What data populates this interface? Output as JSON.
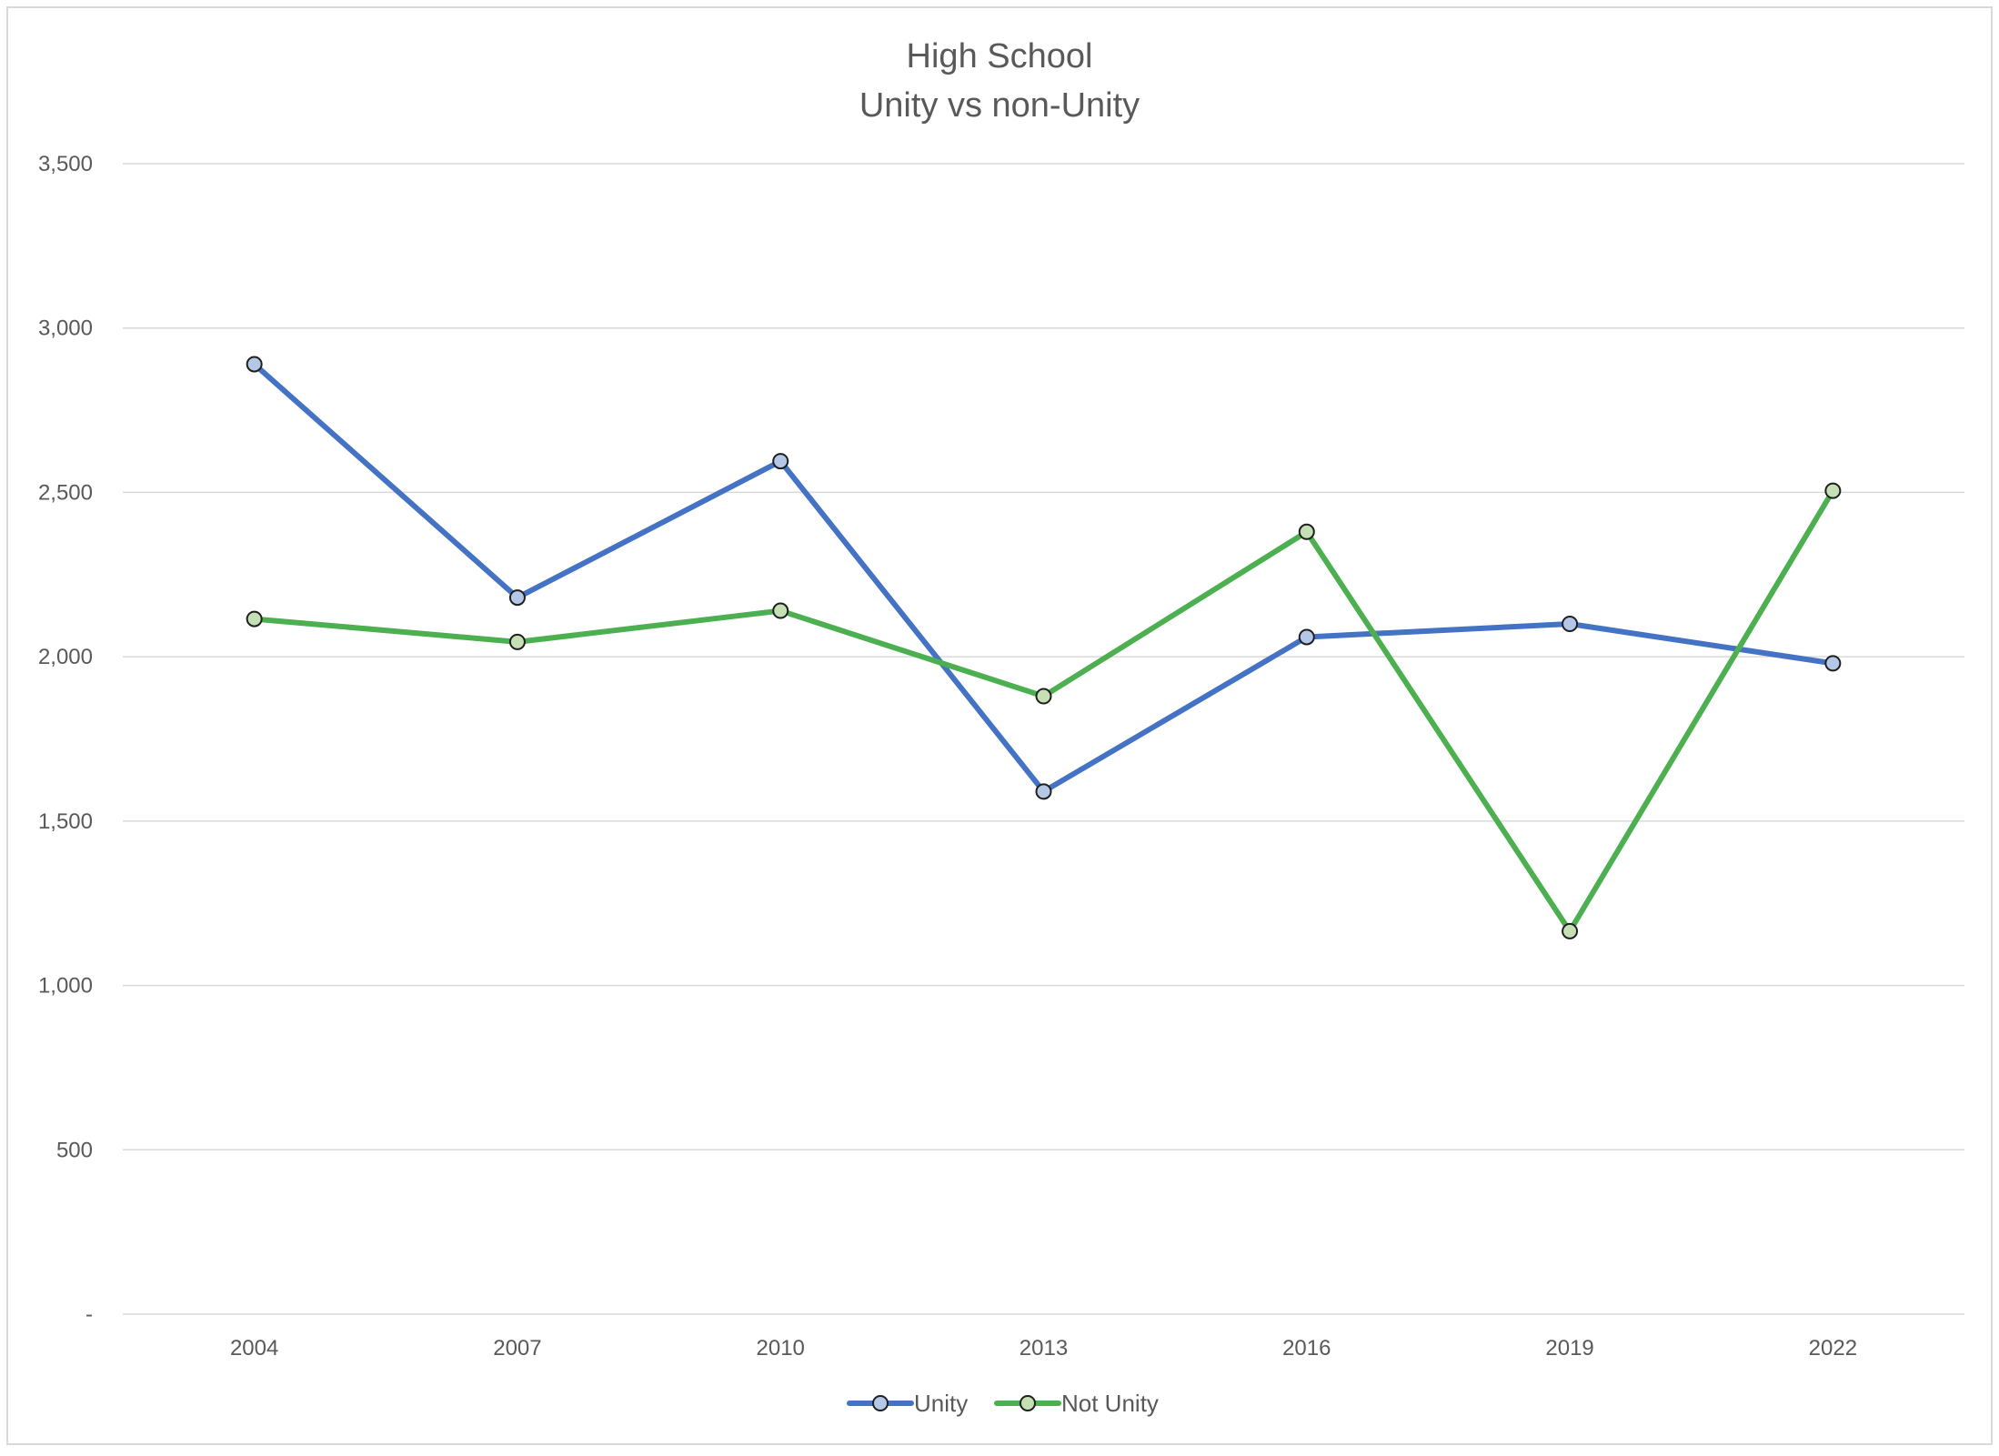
{
  "chart_data": {
    "type": "line",
    "title": "High School",
    "subtitle": "Unity vs non-Unity",
    "xlabel": "",
    "ylabel": "",
    "categories": [
      "2004",
      "2007",
      "2010",
      "2013",
      "2016",
      "2019",
      "2022"
    ],
    "ylim": [
      0,
      3500
    ],
    "yticks": [
      0,
      500,
      1000,
      1500,
      2000,
      2500,
      3000,
      3500
    ],
    "ytick_labels": [
      "-",
      "500",
      "1,000",
      "1,500",
      "2,000",
      "2,500",
      "3,000",
      "3,500"
    ],
    "grid": true,
    "legend_position": "bottom",
    "series": [
      {
        "name": "Unity",
        "color": "#4472c4",
        "marker_fill": "#b4c7e7",
        "values": [
          2890,
          2180,
          2595,
          1590,
          2060,
          2100,
          1980
        ]
      },
      {
        "name": "Not Unity",
        "color": "#4caf50",
        "marker_fill": "#c5e0b4",
        "values": [
          2115,
          2045,
          2140,
          1880,
          2380,
          1165,
          2505
        ]
      }
    ]
  }
}
